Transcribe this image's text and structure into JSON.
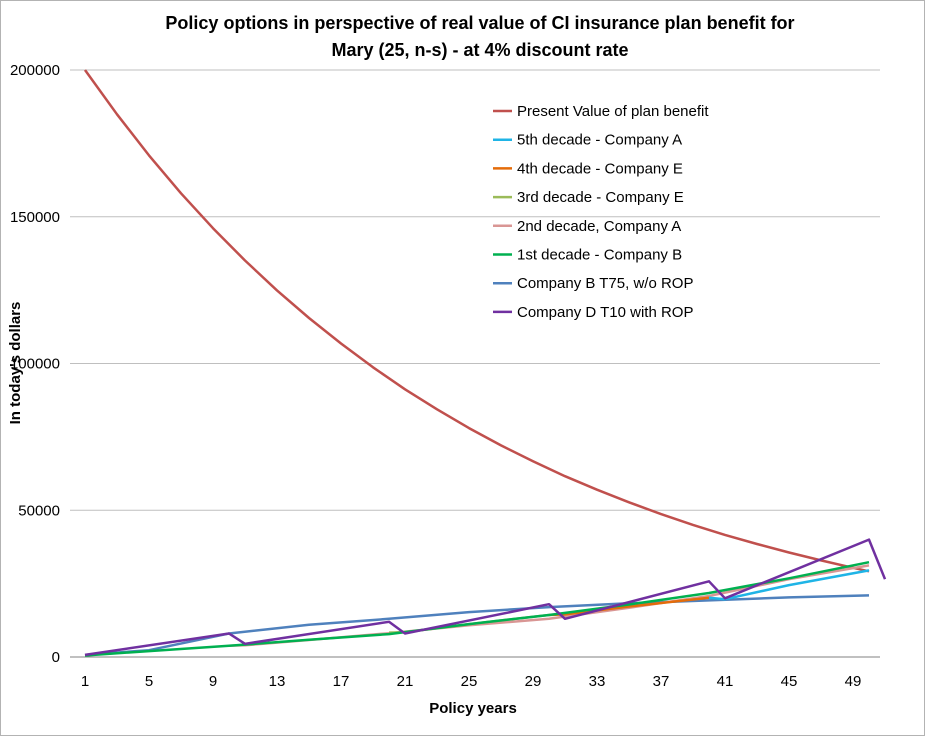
{
  "chart_data": {
    "type": "line",
    "title_line1": "Policy options in perspective of real value of CI insurance plan benefit for",
    "title_line2": "Mary (25, n-s) - at 4% discount rate",
    "xlabel": "Policy years",
    "ylabel": "In today's dollars",
    "xticks": [
      "1",
      "5",
      "9",
      "13",
      "17",
      "21",
      "25",
      "29",
      "33",
      "37",
      "41",
      "45",
      "49"
    ],
    "yticks": [
      "0",
      "50000",
      "100000",
      "150000",
      "200000"
    ],
    "ylim": [
      0,
      200000
    ],
    "xlim": [
      1,
      51
    ],
    "grid": true,
    "legend_position": "top-right, inside plot",
    "series": [
      {
        "name": "Present Value of plan benefit",
        "color": "#c0504d",
        "x": [
          1,
          3,
          5,
          7,
          9,
          11,
          13,
          15,
          17,
          19,
          21,
          23,
          25,
          27,
          29,
          31,
          33,
          35,
          37,
          39,
          41,
          43,
          45,
          47,
          49,
          50
        ],
        "y": [
          200000,
          184900,
          170900,
          158000,
          146100,
          135100,
          124900,
          115500,
          106800,
          98700,
          91200,
          84400,
          78000,
          72100,
          66700,
          61600,
          57000,
          52700,
          48700,
          45000,
          41600,
          38500,
          35600,
          32900,
          30400,
          29200
        ]
      },
      {
        "name": "5th decade - Company A",
        "color": "#1fb4e6",
        "x": [
          40,
          41,
          45,
          50
        ],
        "y": [
          20200,
          19700,
          24500,
          29500
        ]
      },
      {
        "name": "4th decade - Company E",
        "color": "#e46c0a",
        "x": [
          30,
          31,
          35,
          40
        ],
        "y": [
          14300,
          14500,
          17200,
          20200
        ]
      },
      {
        "name": "3rd decade - Company E",
        "color": "#9bbb59",
        "x": [
          20,
          21,
          25,
          30
        ],
        "y": [
          8300,
          8400,
          11200,
          14300
        ]
      },
      {
        "name": "2nd decade, Company A",
        "color": "#d99694",
        "x": [
          10,
          11,
          15,
          20,
          25,
          30,
          35,
          40,
          45,
          50
        ],
        "y": [
          3800,
          4000,
          5800,
          8100,
          10800,
          13000,
          16800,
          20800,
          26500,
          31200
        ]
      },
      {
        "name": "1st decade - Company B",
        "color": "#00b050",
        "x": [
          1,
          5,
          10,
          15,
          20,
          25,
          30,
          35,
          40,
          45,
          50
        ],
        "y": [
          500,
          2000,
          3800,
          5900,
          7800,
          11200,
          14300,
          17900,
          21800,
          26800,
          32300
        ]
      },
      {
        "name": "Company B T75, w/o ROP",
        "color": "#4f81bd",
        "x": [
          1,
          5,
          10,
          15,
          20,
          25,
          30,
          35,
          40,
          45,
          50
        ],
        "y": [
          700,
          2300,
          8000,
          11000,
          13000,
          15300,
          17000,
          18300,
          19300,
          20300,
          21000
        ]
      },
      {
        "name": "Company D T10 with ROP",
        "color": "#7030a0",
        "x": [
          1,
          10,
          11,
          20,
          21,
          30,
          31,
          40,
          41,
          50,
          51
        ],
        "y": [
          700,
          8000,
          4500,
          12000,
          8000,
          18000,
          13000,
          25800,
          20000,
          40000,
          26500
        ]
      }
    ]
  }
}
